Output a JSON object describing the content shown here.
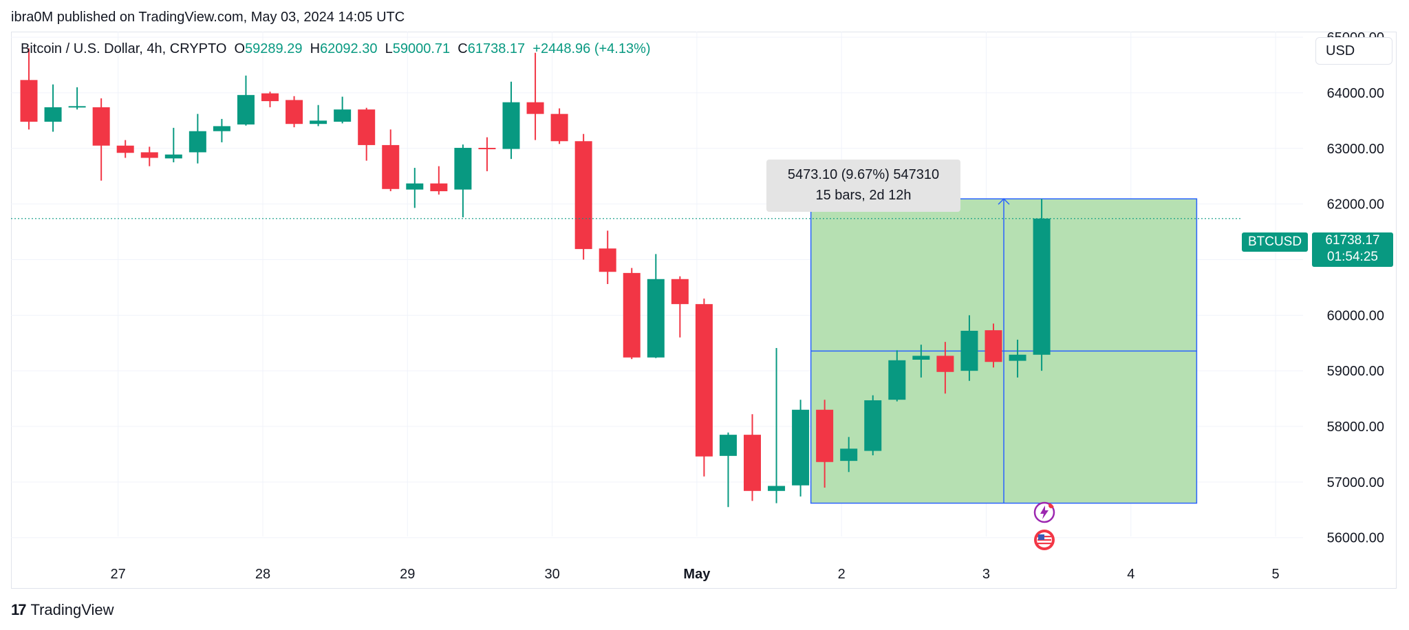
{
  "published_line": "ibra0M published on TradingView.com, May 03, 2024 14:05 UTC",
  "legend": {
    "symbol": "Bitcoin / U.S. Dollar, 4h, CRYPTO",
    "o_label": "O",
    "o_value": "59289.29",
    "h_label": "H",
    "h_value": "62092.30",
    "l_label": "L",
    "l_value": "59000.71",
    "c_label": "C",
    "c_value": "61738.17",
    "change": "+2448.96 (+4.13%)"
  },
  "currency": "USD",
  "measure": {
    "line1": "5473.10 (9.67%) 547310",
    "line2": "15 bars, 2d 12h",
    "low": 56620,
    "high": 62093,
    "start_bar": 33,
    "end_bar": 48
  },
  "price_tag": {
    "symbol": "BTCUSD",
    "price": "61738.17",
    "countdown": "01:54:25"
  },
  "brand": "TradingView",
  "colors": {
    "up": "#089981",
    "down": "#f23645",
    "measure_fill": "#b6e0b2",
    "measure_line": "#2962ff"
  },
  "chart_data": {
    "type": "candlestick",
    "title": "Bitcoin / U.S. Dollar, 4h, CRYPTO",
    "ylim": [
      55650,
      65100
    ],
    "yticks": [
      65000,
      64000,
      63000,
      62000,
      61000,
      60000,
      59000,
      58000,
      57000,
      56000
    ],
    "ytick_labels": [
      "65000.00",
      "64000.00",
      "63000.00",
      "62000.00",
      "61000.00",
      "60000.00",
      "59000.00",
      "58000.00",
      "57000.00",
      "56000.00"
    ],
    "xticks": [
      {
        "bar": 3.7,
        "label": "27"
      },
      {
        "bar": 9.7,
        "label": "28"
      },
      {
        "bar": 15.7,
        "label": "29"
      },
      {
        "bar": 21.7,
        "label": "30"
      },
      {
        "bar": 27.7,
        "label": "May",
        "bold": true
      },
      {
        "bar": 33.7,
        "label": "2"
      },
      {
        "bar": 39.7,
        "label": "3"
      },
      {
        "bar": 45.7,
        "label": "4"
      },
      {
        "bar": 51.7,
        "label": "5"
      }
    ],
    "last_price": 61738.17,
    "candles": [
      {
        "o": 64230,
        "h": 64800,
        "l": 63340,
        "c": 63480
      },
      {
        "o": 63480,
        "h": 64150,
        "l": 63300,
        "c": 63740
      },
      {
        "o": 63740,
        "h": 64100,
        "l": 63700,
        "c": 63760
      },
      {
        "o": 63740,
        "h": 63900,
        "l": 62420,
        "c": 63050
      },
      {
        "o": 63050,
        "h": 63150,
        "l": 62830,
        "c": 62920
      },
      {
        "o": 62930,
        "h": 63030,
        "l": 62680,
        "c": 62830
      },
      {
        "o": 62820,
        "h": 63370,
        "l": 62750,
        "c": 62890
      },
      {
        "o": 62930,
        "h": 63620,
        "l": 62730,
        "c": 63310
      },
      {
        "o": 63310,
        "h": 63530,
        "l": 63110,
        "c": 63400
      },
      {
        "o": 63430,
        "h": 64310,
        "l": 63410,
        "c": 63960
      },
      {
        "o": 63990,
        "h": 64020,
        "l": 63740,
        "c": 63850
      },
      {
        "o": 63870,
        "h": 63940,
        "l": 63380,
        "c": 63440
      },
      {
        "o": 63440,
        "h": 63780,
        "l": 63400,
        "c": 63500
      },
      {
        "o": 63480,
        "h": 63930,
        "l": 63450,
        "c": 63700
      },
      {
        "o": 63700,
        "h": 63730,
        "l": 62780,
        "c": 63060
      },
      {
        "o": 63060,
        "h": 63340,
        "l": 62230,
        "c": 62270
      },
      {
        "o": 62260,
        "h": 62650,
        "l": 61930,
        "c": 62370
      },
      {
        "o": 62370,
        "h": 62680,
        "l": 62170,
        "c": 62230
      },
      {
        "o": 62260,
        "h": 63070,
        "l": 61760,
        "c": 63010
      },
      {
        "o": 63010,
        "h": 63200,
        "l": 62590,
        "c": 63000
      },
      {
        "o": 62990,
        "h": 64200,
        "l": 62810,
        "c": 63830
      },
      {
        "o": 63830,
        "h": 64720,
        "l": 63150,
        "c": 63620
      },
      {
        "o": 63620,
        "h": 63720,
        "l": 63080,
        "c": 63130
      },
      {
        "o": 63130,
        "h": 63260,
        "l": 61000,
        "c": 61190
      },
      {
        "o": 61200,
        "h": 61520,
        "l": 60560,
        "c": 60780
      },
      {
        "o": 60760,
        "h": 60850,
        "l": 59210,
        "c": 59240
      },
      {
        "o": 59240,
        "h": 61100,
        "l": 59230,
        "c": 60650
      },
      {
        "o": 60650,
        "h": 60700,
        "l": 59600,
        "c": 60200
      },
      {
        "o": 60200,
        "h": 60300,
        "l": 57100,
        "c": 57460
      },
      {
        "o": 57470,
        "h": 57890,
        "l": 56550,
        "c": 57850
      },
      {
        "o": 57850,
        "h": 58220,
        "l": 56660,
        "c": 56840
      },
      {
        "o": 56840,
        "h": 59410,
        "l": 56620,
        "c": 56930
      },
      {
        "o": 56940,
        "h": 58480,
        "l": 56740,
        "c": 58300
      },
      {
        "o": 58300,
        "h": 58480,
        "l": 56900,
        "c": 57360
      },
      {
        "o": 57380,
        "h": 57810,
        "l": 57180,
        "c": 57600
      },
      {
        "o": 57560,
        "h": 58560,
        "l": 57480,
        "c": 58470
      },
      {
        "o": 58480,
        "h": 59370,
        "l": 58450,
        "c": 59190
      },
      {
        "o": 59200,
        "h": 59470,
        "l": 58880,
        "c": 59270
      },
      {
        "o": 59270,
        "h": 59520,
        "l": 58590,
        "c": 58980
      },
      {
        "o": 59000,
        "h": 60000,
        "l": 58820,
        "c": 59720
      },
      {
        "o": 59730,
        "h": 59850,
        "l": 59060,
        "c": 59160
      },
      {
        "o": 59180,
        "h": 59560,
        "l": 58880,
        "c": 59290
      },
      {
        "o": 59289.29,
        "h": 62092.3,
        "l": 59000.71,
        "c": 61738.17
      }
    ]
  }
}
